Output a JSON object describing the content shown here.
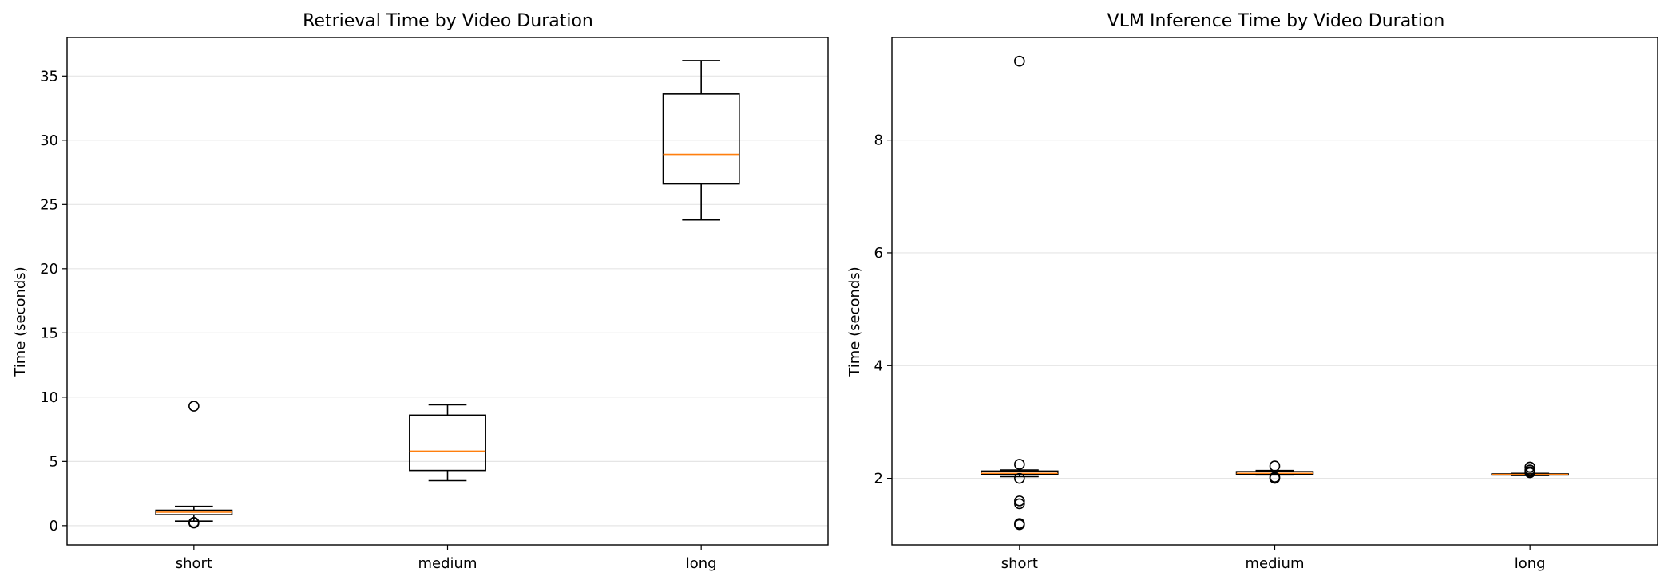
{
  "chart_data": [
    {
      "type": "box",
      "title": "Retrieval Time by Video Duration",
      "xlabel": "",
      "ylabel": "Time (seconds)",
      "categories": [
        "short",
        "medium",
        "long"
      ],
      "ylim": [
        -1.5,
        38
      ],
      "yticks": [
        0,
        5,
        10,
        15,
        20,
        25,
        30,
        35
      ],
      "grid": "horizontal",
      "boxes": [
        {
          "category": "short",
          "whislo": 0.35,
          "q1": 0.85,
          "med": 1.05,
          "q3": 1.2,
          "whishi": 1.5,
          "fliers": [
            9.3,
            0.2,
            0.25
          ]
        },
        {
          "category": "medium",
          "whislo": 3.5,
          "q1": 4.3,
          "med": 5.8,
          "q3": 8.6,
          "whishi": 9.4,
          "fliers": []
        },
        {
          "category": "long",
          "whislo": 23.8,
          "q1": 26.6,
          "med": 28.9,
          "q3": 33.6,
          "whishi": 36.2,
          "fliers": []
        }
      ]
    },
    {
      "type": "box",
      "title": "VLM Inference Time by Video Duration",
      "xlabel": "",
      "ylabel": "Time (seconds)",
      "categories": [
        "short",
        "medium",
        "long"
      ],
      "ylim": [
        0.82,
        9.82
      ],
      "yticks": [
        2,
        4,
        6,
        8
      ],
      "grid": "horizontal",
      "boxes": [
        {
          "category": "short",
          "whislo": 2.03,
          "q1": 2.07,
          "med": 2.09,
          "q3": 2.13,
          "whishi": 2.15,
          "fliers": [
            9.4,
            2.25,
            2.0,
            1.6,
            1.55,
            1.2,
            1.18
          ]
        },
        {
          "category": "medium",
          "whislo": 2.06,
          "q1": 2.07,
          "med": 2.09,
          "q3": 2.12,
          "whishi": 2.14,
          "fliers": [
            2.22,
            2.02,
            2.0
          ]
        },
        {
          "category": "long",
          "whislo": 2.05,
          "q1": 2.06,
          "med": 2.07,
          "q3": 2.08,
          "whishi": 2.09,
          "fliers": [
            2.2,
            2.15,
            2.12,
            2.1
          ]
        }
      ]
    }
  ],
  "colors": {
    "box": "#000000",
    "median": "#ff7f0e",
    "grid": "#e5e5e5"
  }
}
